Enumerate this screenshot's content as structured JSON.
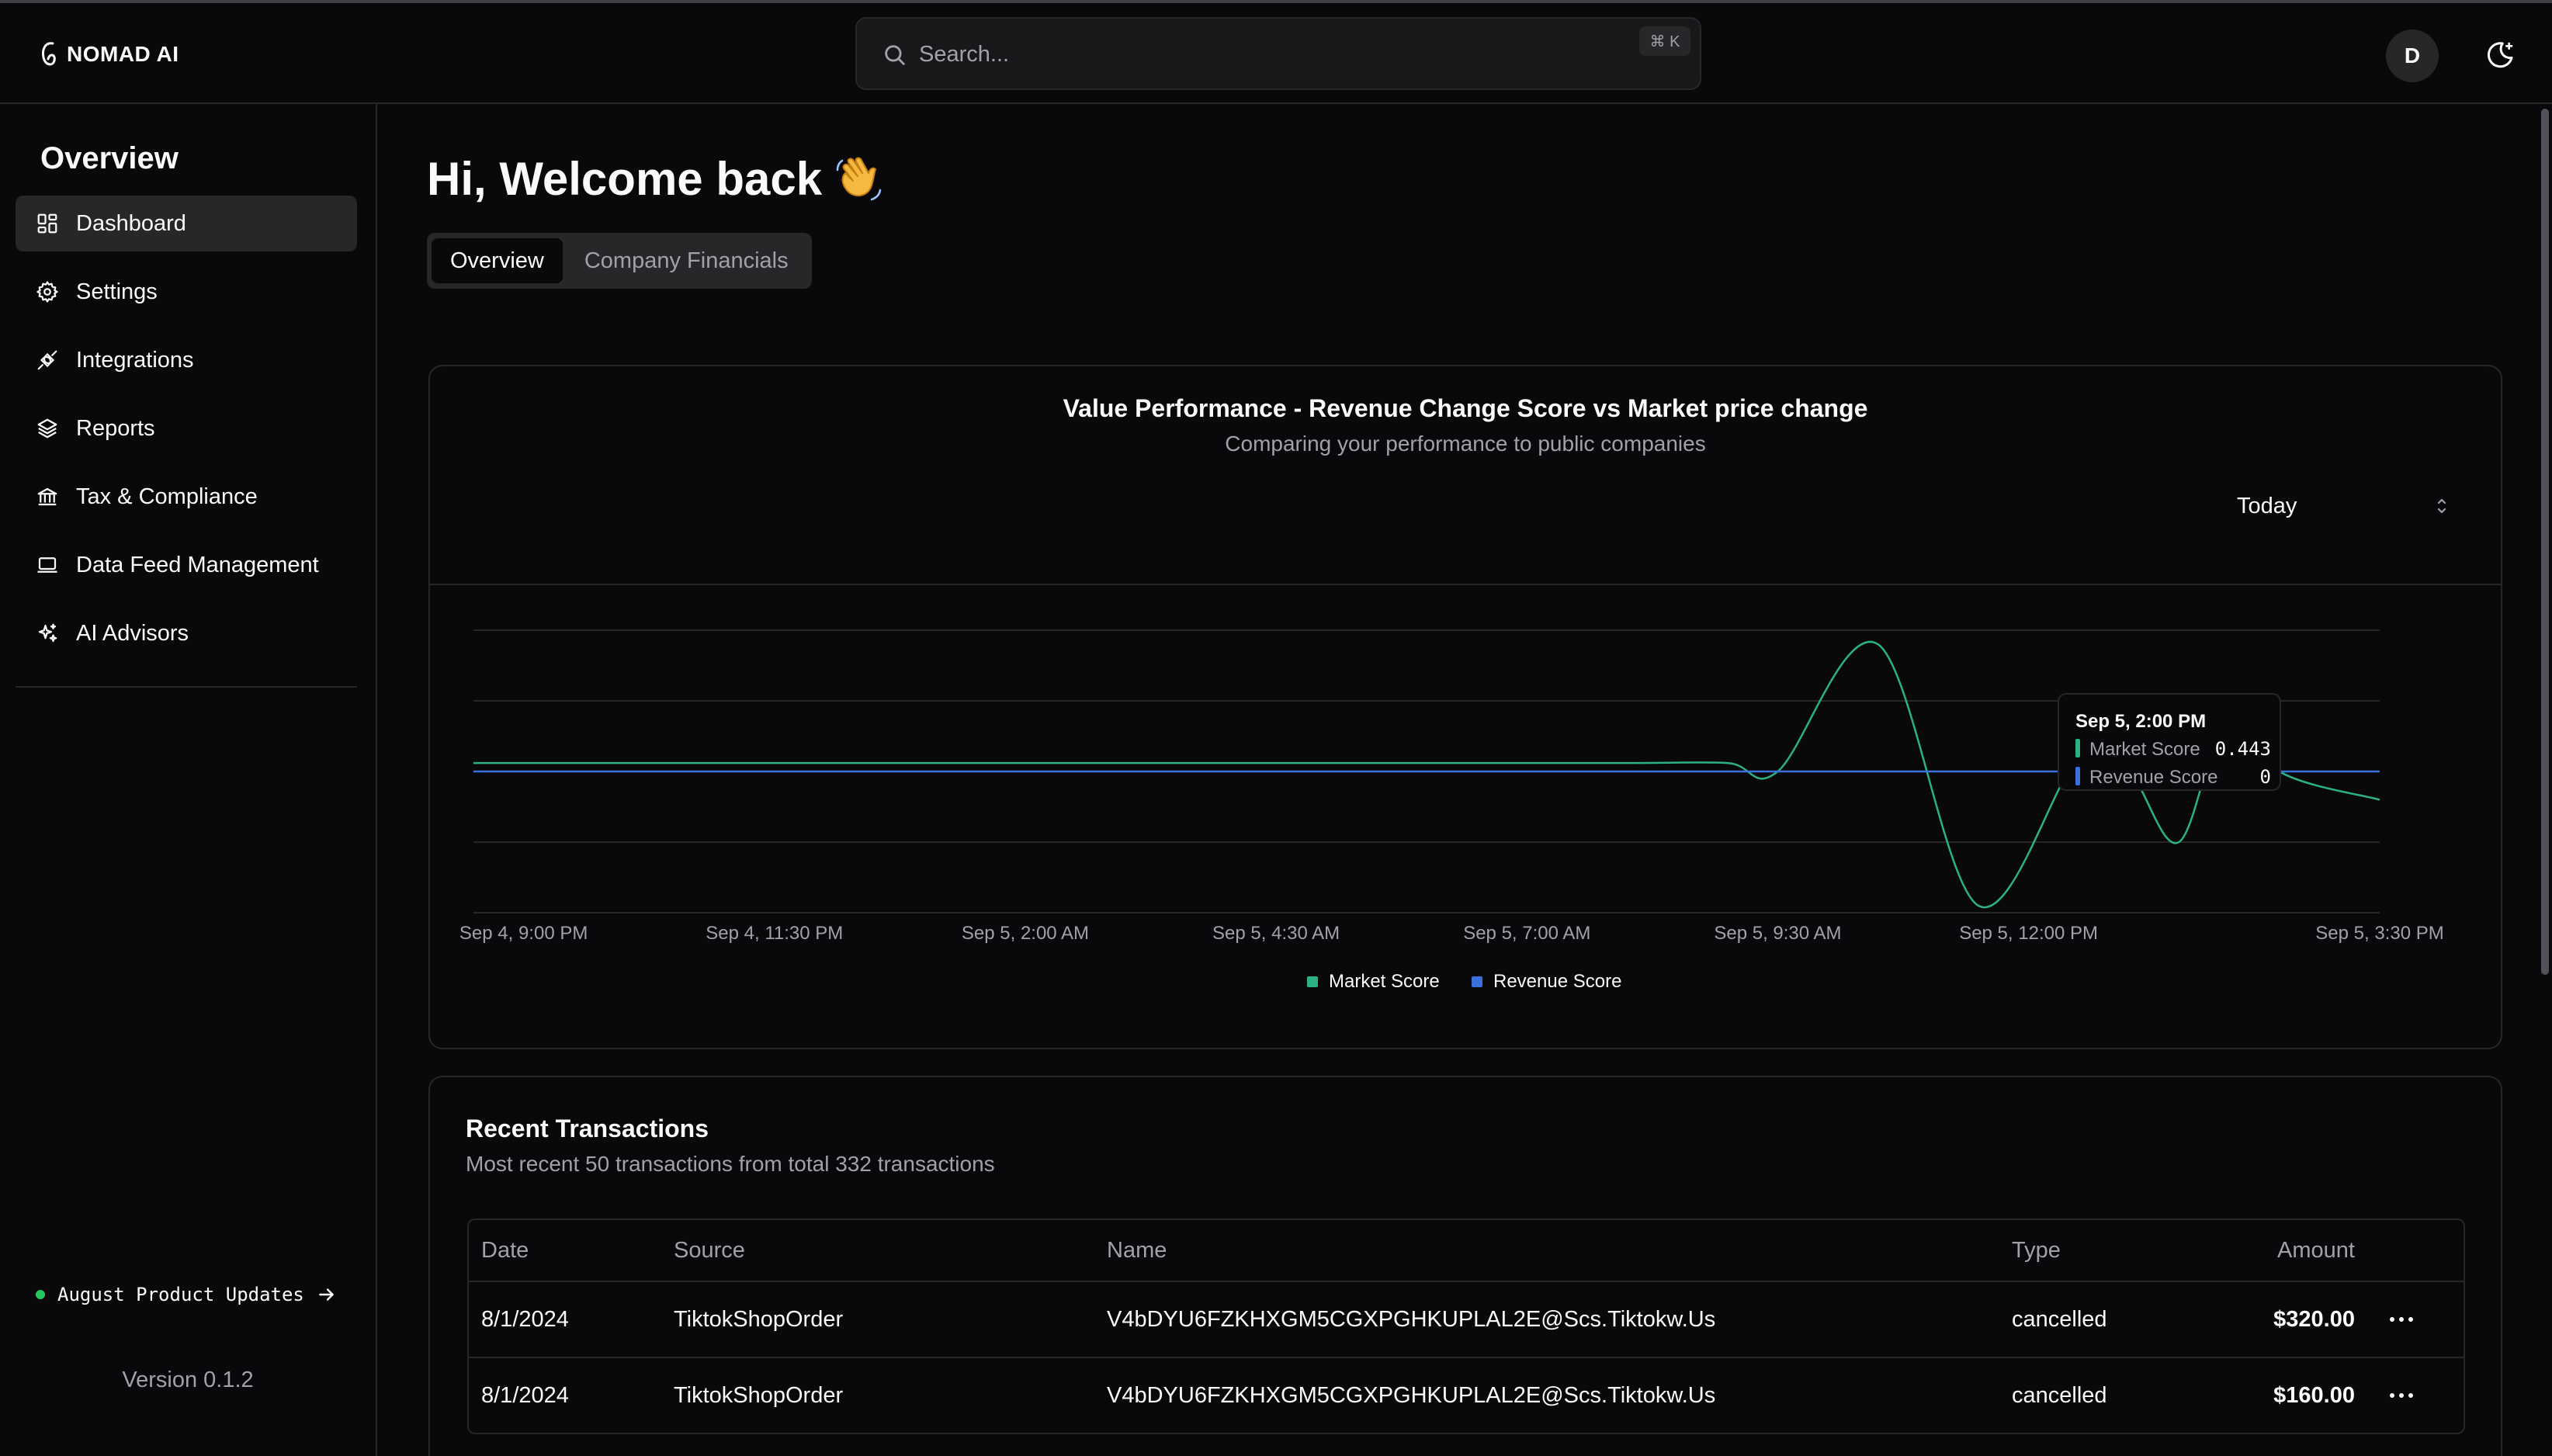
{
  "app": {
    "logo_text": "NOMAD AI"
  },
  "search": {
    "placeholder": "Search...",
    "shortcut": "⌘ K"
  },
  "user": {
    "avatar_initial": "D"
  },
  "sidebar": {
    "title": "Overview",
    "items": [
      {
        "label": "Dashboard",
        "icon": "dashboard-icon",
        "active": true
      },
      {
        "label": "Settings",
        "icon": "gear-icon"
      },
      {
        "label": "Integrations",
        "icon": "plug-icon"
      },
      {
        "label": "Reports",
        "icon": "layers-icon"
      },
      {
        "label": "Tax & Compliance",
        "icon": "bank-icon"
      },
      {
        "label": "Data Feed Management",
        "icon": "laptop-icon"
      },
      {
        "label": "AI Advisors",
        "icon": "sparkles-icon"
      }
    ],
    "updates_label": "August Product Updates",
    "version": "Version 0.1.2"
  },
  "main": {
    "greeting": "Hi, Welcome back",
    "tabs": [
      {
        "label": "Overview",
        "active": true
      },
      {
        "label": "Company Financials",
        "active": false
      }
    ]
  },
  "chart": {
    "title": "Value Performance - Revenue Change Score vs Market price change",
    "subtitle": "Comparing your performance to public companies",
    "range_selected": "Today",
    "tooltip": {
      "time": "Sep 5, 2:00 PM",
      "rows": [
        {
          "label": "Market Score",
          "value": "0.443"
        },
        {
          "label": "Revenue Score",
          "value": "0"
        }
      ]
    }
  },
  "chart_data": {
    "type": "line",
    "title": "Value Performance - Revenue Change Score vs Market price change",
    "subtitle": "Comparing your performance to public companies",
    "x_tick_labels": [
      "Sep 4, 9:00 PM",
      "Sep 4, 11:30 PM",
      "Sep 5, 2:00 AM",
      "Sep 5, 4:30 AM",
      "Sep 5, 7:00 AM",
      "Sep 5, 9:30 AM",
      "Sep 5, 12:00 PM",
      "Sep 5, 3:30 PM"
    ],
    "x_hours": [
      0,
      2.5,
      5,
      7.5,
      10,
      12.5,
      15,
      18.5
    ],
    "ylim": [
      -1,
      1
    ],
    "grid": true,
    "legend": "bottom",
    "series": [
      {
        "name": "Market Score",
        "color": "#2bb184",
        "x": [
          "Sep 4, 8:30 PM",
          "Sep 4, 10:00 PM",
          "Sep 5, 12:00 AM",
          "Sep 5, 2:00 AM",
          "Sep 5, 4:00 AM",
          "Sep 5, 6:00 AM",
          "Sep 5, 8:00 AM",
          "Sep 5, 9:00 AM",
          "Sep 5, 9:30 AM",
          "Sep 5, 10:30 AM",
          "Sep 5, 11:30 AM",
          "Sep 5, 12:30 PM",
          "Sep 5, 1:00 PM",
          "Sep 5, 1:30 PM",
          "Sep 5, 2:00 PM",
          "Sep 5, 2:30 PM",
          "Sep 5, 3:30 PM"
        ],
        "x_hours": [
          -0.5,
          1,
          3,
          5,
          7,
          9,
          11,
          12,
          12.5,
          13.5,
          14.5,
          15.5,
          16,
          16.5,
          17,
          17.5,
          18.5
        ],
        "values": [
          0.06,
          0.06,
          0.06,
          0.06,
          0.06,
          0.06,
          0.06,
          0.06,
          0.0,
          0.9,
          -0.95,
          0.1,
          0.0,
          -0.5,
          0.443,
          0.0,
          -0.2
        ]
      },
      {
        "name": "Revenue Score",
        "color": "#3b6fdc",
        "x": [
          "Sep 4, 8:30 PM",
          "Sep 5, 3:30 PM"
        ],
        "x_hours": [
          -0.5,
          18.5
        ],
        "values": [
          0,
          0
        ]
      }
    ]
  },
  "transactions": {
    "title": "Recent Transactions",
    "subtitle": "Most recent 50 transactions from total 332 transactions",
    "columns": [
      "Date",
      "Source",
      "Name",
      "Type",
      "Amount"
    ],
    "rows": [
      {
        "date": "8/1/2024",
        "source": "TiktokShopOrder",
        "name": "V4bDYU6FZKHXGM5CGXPGHKUPLAL2E@Scs.Tiktokw.Us",
        "type": "cancelled",
        "amount": "$320.00"
      },
      {
        "date": "8/1/2024",
        "source": "TiktokShopOrder",
        "name": "V4bDYU6FZKHXGM5CGXPGHKUPLAL2E@Scs.Tiktokw.Us",
        "type": "cancelled",
        "amount": "$160.00"
      }
    ]
  }
}
